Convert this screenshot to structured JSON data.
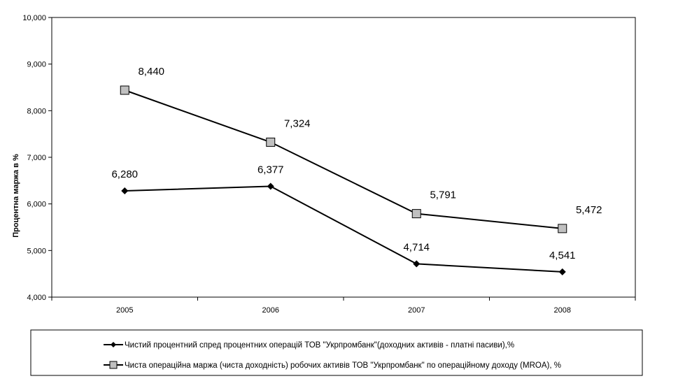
{
  "chart_data": {
    "type": "line",
    "title": "",
    "xlabel": "",
    "ylabel": "Процентна маржа в %",
    "categories": [
      "2005",
      "2006",
      "2007",
      "2008"
    ],
    "ylim": [
      4,
      10
    ],
    "yticks": [
      4,
      5,
      6,
      7,
      8,
      9,
      10
    ],
    "ytick_labels": [
      "4,000",
      "5,000",
      "6,000",
      "7,000",
      "8,000",
      "9,000",
      "10,000"
    ],
    "grid": false,
    "legend_position": "bottom",
    "series": [
      {
        "name": "Чистий процентний спред процентних операцій ТОВ  \"Укрпромбанк\"(доходних активів - платні пасиви),%",
        "marker": "diamond",
        "color": "#000000",
        "values": [
          6.28,
          6.377,
          4.714,
          4.541
        ],
        "labels": [
          "6,280",
          "6,377",
          "4,714",
          "4,541"
        ]
      },
      {
        "name": "Чиста операційна маржа (чиста доходність) робочих активів ТОВ \"Укрпромбанк\" по операційному доходу (MROA),  %",
        "marker": "square",
        "color": "#000000",
        "marker_fill": "#c0c0c0",
        "values": [
          8.44,
          7.324,
          5.791,
          5.472
        ],
        "labels": [
          "8,440",
          "7,324",
          "5,791",
          "5,472"
        ]
      }
    ]
  }
}
